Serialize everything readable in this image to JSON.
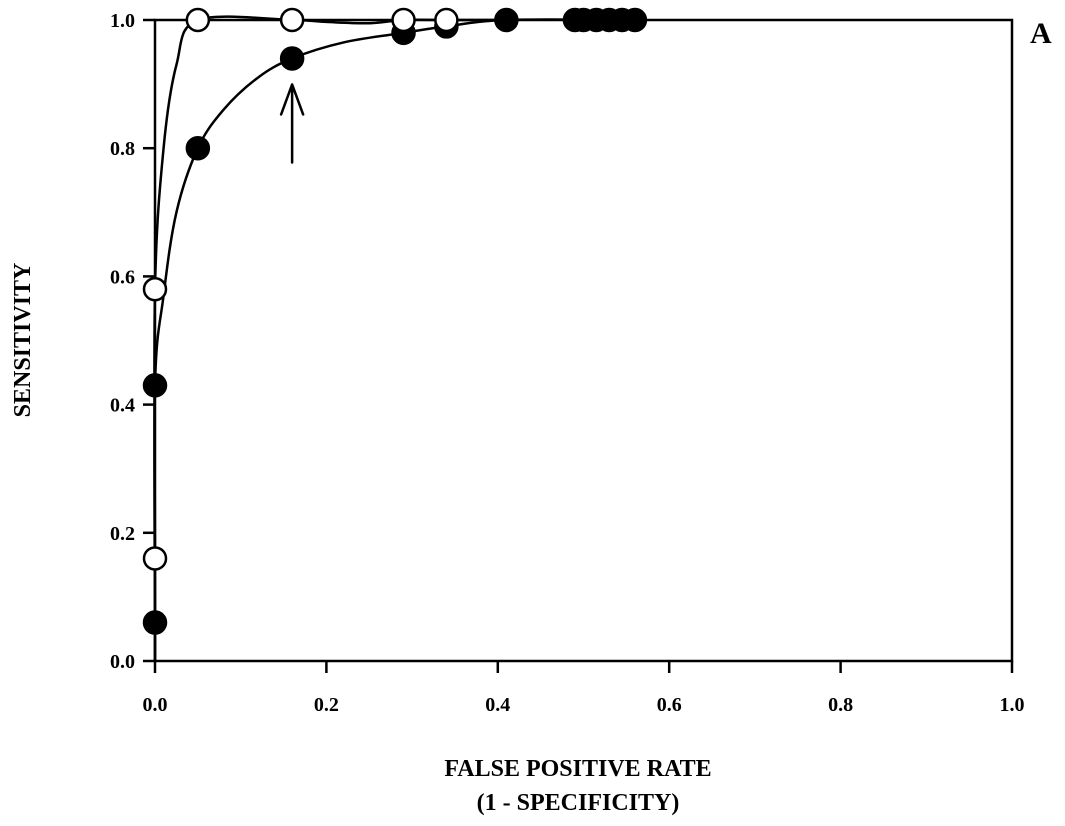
{
  "chart_data": {
    "type": "line",
    "panel_label": "A",
    "xlabel_line1": "FALSE POSITIVE RATE",
    "xlabel_line2": "(1 - SPECIFICITY)",
    "ylabel": "SENSITIVITY",
    "xlim": [
      0.0,
      1.0
    ],
    "ylim": [
      0.0,
      1.0
    ],
    "x_ticks": [
      "0.0",
      "0.2",
      "0.4",
      "0.6",
      "0.8",
      "1.0"
    ],
    "y_ticks": [
      "0.0",
      "0.2",
      "0.4",
      "0.6",
      "0.8",
      "1.0"
    ],
    "grid": false,
    "series": [
      {
        "marker": "open-circle",
        "points": [
          {
            "x": 0.0,
            "y": 0.16
          },
          {
            "x": 0.0,
            "y": 0.58
          },
          {
            "x": 0.05,
            "y": 1.0
          },
          {
            "x": 0.16,
            "y": 1.0
          },
          {
            "x": 0.29,
            "y": 1.0
          },
          {
            "x": 0.34,
            "y": 1.0
          }
        ],
        "curve": [
          {
            "x": 0.0,
            "y": 0.0
          },
          {
            "x": 0.0,
            "y": 0.16
          },
          {
            "x": 0.0,
            "y": 0.58
          },
          {
            "x": 0.01,
            "y": 0.8
          },
          {
            "x": 0.025,
            "y": 0.93
          },
          {
            "x": 0.05,
            "y": 1.0
          },
          {
            "x": 0.16,
            "y": 1.0
          },
          {
            "x": 0.2,
            "y": 0.997
          },
          {
            "x": 0.25,
            "y": 0.995
          },
          {
            "x": 0.29,
            "y": 1.0
          },
          {
            "x": 0.34,
            "y": 1.0
          },
          {
            "x": 0.41,
            "y": 1.0
          }
        ]
      },
      {
        "marker": "filled-circle",
        "points": [
          {
            "x": 0.0,
            "y": 0.06
          },
          {
            "x": 0.0,
            "y": 0.43
          },
          {
            "x": 0.05,
            "y": 0.8
          },
          {
            "x": 0.16,
            "y": 0.94
          },
          {
            "x": 0.29,
            "y": 0.98
          },
          {
            "x": 0.34,
            "y": 0.99
          },
          {
            "x": 0.41,
            "y": 1.0
          },
          {
            "x": 0.49,
            "y": 1.0
          },
          {
            "x": 0.5,
            "y": 1.0
          },
          {
            "x": 0.515,
            "y": 1.0
          },
          {
            "x": 0.53,
            "y": 1.0
          },
          {
            "x": 0.545,
            "y": 1.0
          },
          {
            "x": 0.56,
            "y": 1.0
          }
        ],
        "curve": [
          {
            "x": 0.0,
            "y": 0.0
          },
          {
            "x": 0.0,
            "y": 0.06
          },
          {
            "x": 0.0,
            "y": 0.43
          },
          {
            "x": 0.01,
            "y": 0.57
          },
          {
            "x": 0.025,
            "y": 0.7
          },
          {
            "x": 0.05,
            "y": 0.8
          },
          {
            "x": 0.08,
            "y": 0.86
          },
          {
            "x": 0.12,
            "y": 0.91
          },
          {
            "x": 0.16,
            "y": 0.94
          },
          {
            "x": 0.22,
            "y": 0.965
          },
          {
            "x": 0.29,
            "y": 0.98
          },
          {
            "x": 0.34,
            "y": 0.99
          },
          {
            "x": 0.41,
            "y": 1.0
          },
          {
            "x": 0.56,
            "y": 1.0
          }
        ]
      }
    ],
    "annotations": [
      {
        "type": "arrow",
        "points_to": {
          "x": 0.16,
          "y": 0.94
        }
      }
    ]
  }
}
